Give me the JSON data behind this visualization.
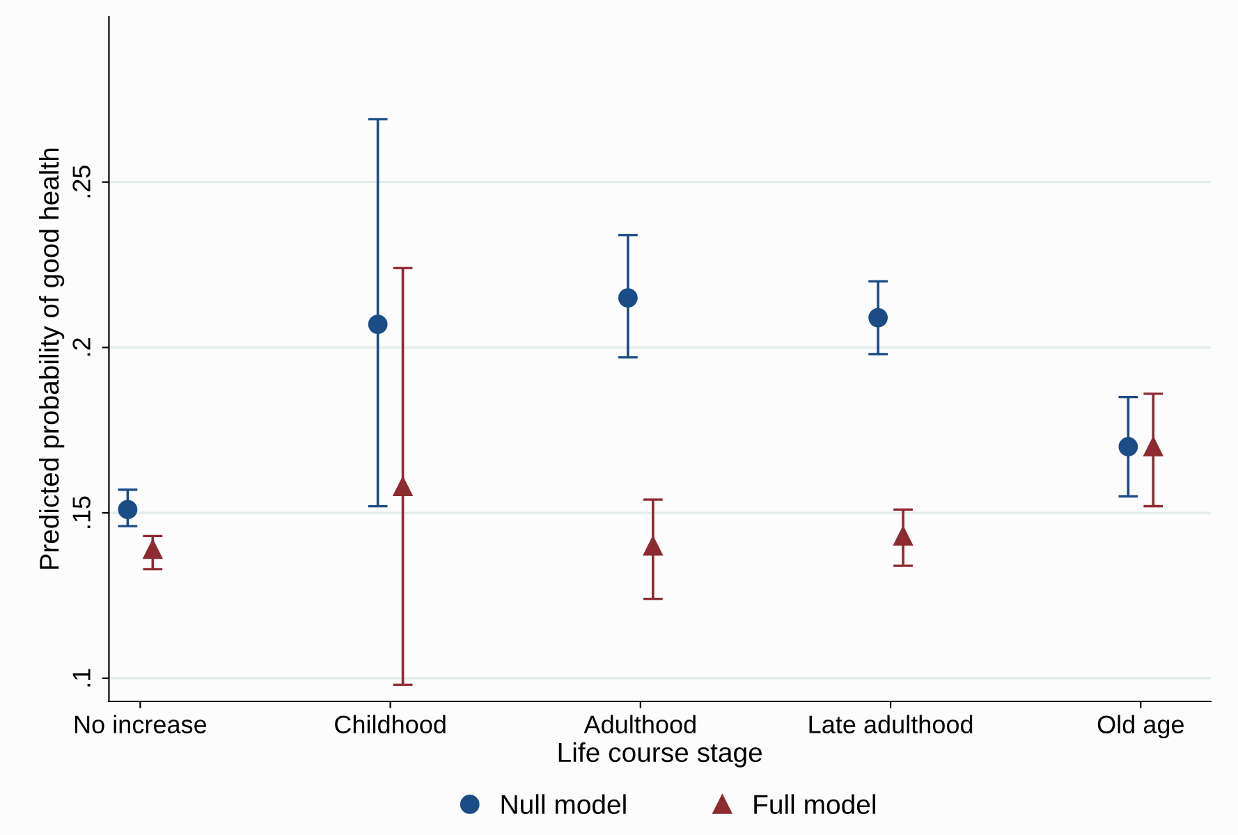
{
  "chart_data": {
    "type": "scatter",
    "xlabel": "Life course stage",
    "ylabel": "Predicted probability of good health",
    "categories": [
      "No increase",
      "Childhood",
      "Adulthood",
      "Late adulthood",
      "Old age"
    ],
    "series": [
      {
        "name": "Null model",
        "color": "#1c4c85",
        "marker": "circle",
        "values": [
          0.151,
          0.207,
          0.215,
          0.209,
          0.17
        ],
        "errors": [
          [
            0.146,
            0.157
          ],
          [
            0.152,
            0.269
          ],
          [
            0.197,
            0.234
          ],
          [
            0.198,
            0.22
          ],
          [
            0.155,
            0.185
          ]
        ]
      },
      {
        "name": "Full model",
        "color": "#8e2a31",
        "marker": "triangle",
        "values": [
          0.139,
          0.158,
          0.14,
          0.143,
          0.17
        ],
        "errors": [
          [
            0.133,
            0.143
          ],
          [
            0.098,
            0.224
          ],
          [
            0.124,
            0.154
          ],
          [
            0.134,
            0.151
          ],
          [
            0.152,
            0.186
          ]
        ]
      }
    ],
    "ylim": [
      0.093,
      0.3
    ],
    "yticks": [
      {
        "value": 0.1,
        "label": ".1"
      },
      {
        "value": 0.15,
        "label": ".15"
      },
      {
        "value": 0.2,
        "label": ".2"
      },
      {
        "value": 0.25,
        "label": ".25"
      }
    ],
    "grid": "y",
    "legend": "bottom"
  }
}
